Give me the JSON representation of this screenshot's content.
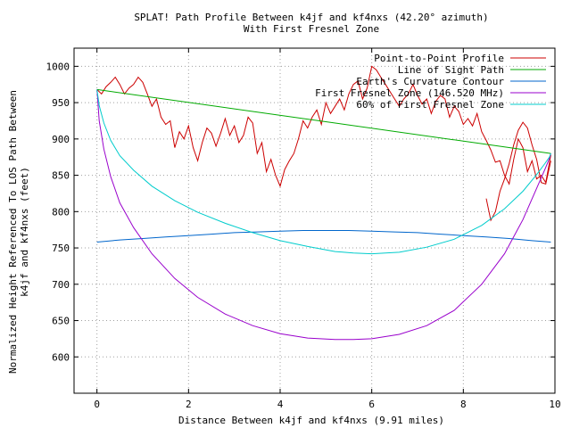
{
  "chart_data": {
    "type": "line",
    "title": "SPLAT! Path Profile Between k4jf and kf4nxs (42.20° azimuth)",
    "subtitle": "With First Fresnel Zone",
    "xlabel": "Distance Between k4jf and kf4nxs (9.91 miles)",
    "ylabel_line1": "Normalized Height Referenced To LOS Path Between",
    "ylabel_line2": "k4jf and kf4nxs (feet)",
    "xlim": [
      -0.5,
      10
    ],
    "ylim": [
      550,
      1025
    ],
    "x_ticks": [
      0,
      2,
      4,
      6,
      8,
      10
    ],
    "y_ticks": [
      600,
      650,
      700,
      750,
      800,
      850,
      900,
      950,
      1000
    ],
    "grid": true,
    "legend_position": "top-right",
    "series": [
      {
        "name": "Point-to-Point Profile",
        "color": "#cc0000",
        "x": [
          0,
          0.1,
          0.2,
          0.3,
          0.4,
          0.5,
          0.6,
          0.7,
          0.8,
          0.9,
          1.0,
          1.1,
          1.2,
          1.3,
          1.4,
          1.5,
          1.6,
          1.7,
          1.8,
          1.9,
          2.0,
          2.1,
          2.2,
          2.3,
          2.4,
          2.5,
          2.6,
          2.7,
          2.8,
          2.9,
          3.0,
          3.1,
          3.2,
          3.3,
          3.4,
          3.5,
          3.6,
          3.7,
          3.8,
          3.9,
          4.0,
          4.1,
          4.2,
          4.3,
          4.4,
          4.5,
          4.6,
          4.7,
          4.8,
          4.9,
          5.0,
          5.1,
          5.2,
          5.3,
          5.4,
          5.5,
          5.6,
          5.7,
          5.8,
          5.9,
          6.0,
          6.1,
          6.2,
          6.3,
          6.4,
          6.5,
          6.6,
          6.7,
          6.8,
          6.9,
          7.0,
          7.1,
          7.2,
          7.3,
          7.4,
          7.5,
          7.6,
          7.7,
          7.8,
          7.9,
          8.0,
          8.1,
          8.2,
          8.3,
          8.4,
          8.5,
          8.6,
          8.7,
          8.8,
          8.9,
          9.0,
          9.1,
          9.2,
          9.3,
          9.4,
          9.5,
          9.6,
          9.7,
          9.8,
          9.91
        ],
        "y": [
          968,
          962,
          972,
          978,
          985,
          975,
          962,
          970,
          975,
          985,
          978,
          962,
          945,
          955,
          930,
          920,
          925,
          888,
          910,
          900,
          918,
          888,
          870,
          895,
          915,
          908,
          890,
          908,
          928,
          905,
          918,
          895,
          905,
          930,
          922,
          880,
          895,
          855,
          872,
          850,
          835,
          858,
          870,
          880,
          900,
          925,
          915,
          930,
          940,
          920,
          950,
          935,
          945,
          955,
          940,
          962,
          975,
          980,
          955,
          970,
          1000,
          995,
          985,
          975,
          965,
          955,
          945,
          955,
          962,
          975,
          960,
          948,
          955,
          935,
          952,
          960,
          955,
          930,
          945,
          938,
          920,
          928,
          918,
          935,
          910,
          898,
          885,
          868,
          870,
          850,
          838,
          872,
          900,
          888,
          855,
          870,
          845,
          850,
          840,
          878
        ],
        "x_extra": [
          8.5,
          8.6,
          8.7,
          8.8,
          8.9,
          9.0,
          9.1,
          9.2,
          9.3,
          9.4,
          9.5,
          9.6,
          9.7,
          9.8,
          9.91
        ],
        "y_extra": [
          818,
          788,
          800,
          828,
          845,
          866,
          892,
          912,
          923,
          915,
          892,
          872,
          840,
          838,
          870
        ]
      },
      {
        "name": "Line of Sight Path",
        "color": "#00aa00",
        "x": [
          0,
          9.91
        ],
        "y": [
          968,
          880
        ]
      },
      {
        "name": "Earth's Curvature Contour",
        "color": "#0066cc",
        "x": [
          0,
          0.5,
          1,
          1.5,
          2,
          2.5,
          3,
          3.5,
          4,
          4.5,
          5,
          5.5,
          6,
          6.5,
          7,
          7.5,
          8,
          8.5,
          9,
          9.5,
          9.91
        ],
        "y": [
          758,
          761,
          763,
          765,
          767,
          769,
          771,
          772,
          773,
          774,
          774,
          774,
          773,
          772,
          771,
          769,
          767,
          765,
          763,
          760,
          758
        ]
      },
      {
        "name": "First Fresnel Zone (146.520 MHz)",
        "color": "#9900cc",
        "x": [
          0,
          0.05,
          0.15,
          0.3,
          0.5,
          0.8,
          1.2,
          1.7,
          2.2,
          2.8,
          3.4,
          4.0,
          4.6,
          5.2,
          5.6,
          6.0,
          6.6,
          7.2,
          7.8,
          8.4,
          8.9,
          9.3,
          9.6,
          9.78,
          9.88,
          9.91
        ],
        "y": [
          968,
          925,
          886,
          848,
          812,
          778,
          742,
          708,
          682,
          659,
          643,
          632,
          626,
          624,
          624,
          625,
          631,
          643,
          664,
          700,
          742,
          789,
          832,
          858,
          873,
          880
        ]
      },
      {
        "name": "60% of First Fresnel Zone",
        "color": "#00cccc",
        "x": [
          0,
          0.05,
          0.15,
          0.3,
          0.5,
          0.8,
          1.2,
          1.7,
          2.2,
          2.8,
          3.4,
          4.0,
          4.6,
          5.2,
          5.6,
          6.0,
          6.6,
          7.2,
          7.8,
          8.4,
          8.9,
          9.3,
          9.6,
          9.78,
          9.88,
          9.91
        ],
        "y": [
          968,
          946,
          922,
          898,
          877,
          857,
          835,
          815,
          799,
          784,
          771,
          760,
          752,
          745,
          743,
          742,
          744,
          751,
          762,
          781,
          804,
          828,
          851,
          866,
          875,
          880
        ]
      }
    ]
  }
}
